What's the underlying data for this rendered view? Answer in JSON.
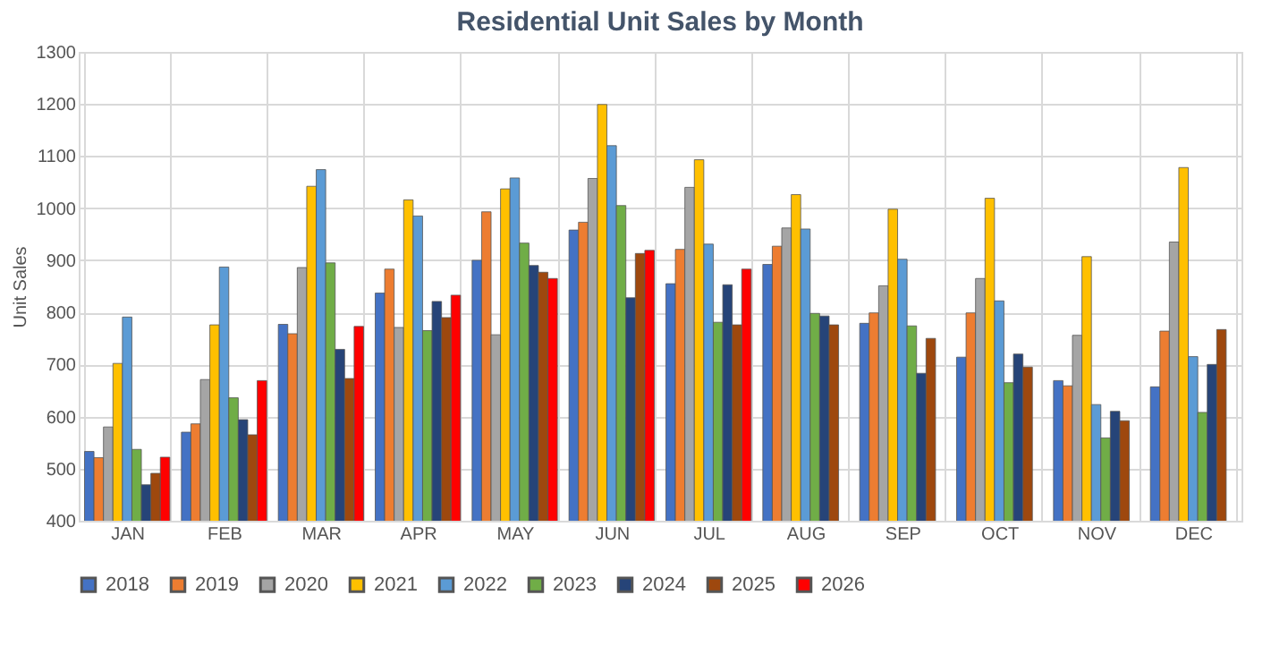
{
  "chart_data": {
    "type": "bar",
    "title": "Residential Unit Sales by Month",
    "ylabel": "Unit Sales",
    "categories": [
      "JAN",
      "FEB",
      "MAR",
      "APR",
      "MAY",
      "JUN",
      "JUL",
      "AUG",
      "SEP",
      "OCT",
      "NOV",
      "DEC"
    ],
    "series": [
      {
        "name": "2018",
        "color": "#4472c4",
        "values": [
          533,
          570,
          777,
          837,
          900,
          958,
          855,
          892,
          779,
          714,
          669,
          657
        ]
      },
      {
        "name": "2019",
        "color": "#ed7d31",
        "values": [
          521,
          586,
          759,
          883,
          993,
          973,
          921,
          927,
          799,
          799,
          659,
          764
        ]
      },
      {
        "name": "2020",
        "color": "#a5a5a5",
        "values": [
          580,
          671,
          886,
          771,
          757,
          1057,
          1040,
          962,
          851,
          865,
          756,
          935
        ]
      },
      {
        "name": "2021",
        "color": "#ffc000",
        "values": [
          702,
          776,
          1042,
          1016,
          1037,
          1199,
          1093,
          1026,
          998,
          1019,
          907,
          1078
        ]
      },
      {
        "name": "2022",
        "color": "#5b9bd5",
        "values": [
          791,
          887,
          1074,
          985,
          1058,
          1120,
          931,
          960,
          902,
          822,
          623,
          715
        ]
      },
      {
        "name": "2023",
        "color": "#70ad47",
        "values": [
          537,
          636,
          895,
          765,
          933,
          1005,
          781,
          798,
          774,
          665,
          559,
          608
        ]
      },
      {
        "name": "2024",
        "color": "#264478",
        "values": [
          469,
          594,
          729,
          821,
          890,
          828,
          853,
          793,
          683,
          720,
          610,
          700
        ]
      },
      {
        "name": "2025",
        "color": "#9e480e",
        "values": [
          491,
          565,
          673,
          790,
          877,
          913,
          776,
          776,
          750,
          695,
          592,
          767
        ]
      },
      {
        "name": "2026",
        "color": "#ff0000",
        "values": [
          522,
          669,
          773,
          833,
          865,
          919,
          883,
          null,
          null,
          null,
          null,
          null
        ]
      }
    ],
    "ylim": [
      400,
      1300
    ],
    "yticks": [
      400,
      500,
      600,
      700,
      800,
      900,
      1000,
      1100,
      1200,
      1300
    ],
    "grid": true,
    "legend": "bottom"
  }
}
